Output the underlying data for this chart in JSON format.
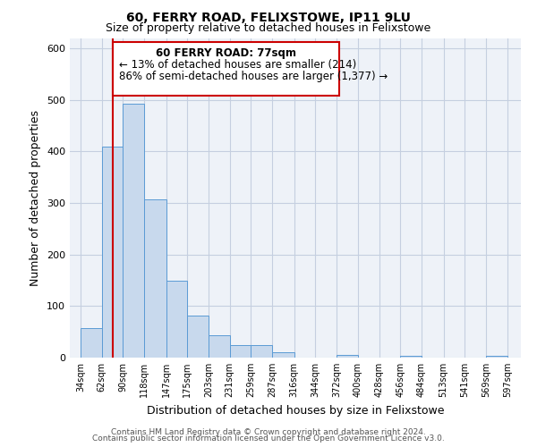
{
  "title": "60, FERRY ROAD, FELIXSTOWE, IP11 9LU",
  "subtitle": "Size of property relative to detached houses in Felixstowe",
  "xlabel": "Distribution of detached houses by size in Felixstowe",
  "ylabel": "Number of detached properties",
  "bar_left_edges": [
    34,
    62,
    90,
    118,
    147,
    175,
    203,
    231,
    259,
    287,
    316,
    344,
    372,
    400,
    428,
    456,
    484,
    513,
    541,
    569
  ],
  "bar_heights": [
    57,
    410,
    493,
    307,
    149,
    81,
    44,
    25,
    25,
    10,
    0,
    0,
    5,
    0,
    0,
    4,
    0,
    0,
    0,
    4
  ],
  "bar_widths": [
    28,
    28,
    28,
    29,
    28,
    28,
    28,
    28,
    28,
    29,
    28,
    28,
    28,
    28,
    28,
    28,
    29,
    28,
    28,
    28
  ],
  "bar_color": "#c8d9ed",
  "bar_edge_color": "#5b9bd5",
  "tick_labels": [
    "34sqm",
    "62sqm",
    "90sqm",
    "118sqm",
    "147sqm",
    "175sqm",
    "203sqm",
    "231sqm",
    "259sqm",
    "287sqm",
    "316sqm",
    "344sqm",
    "372sqm",
    "400sqm",
    "428sqm",
    "456sqm",
    "484sqm",
    "513sqm",
    "541sqm",
    "569sqm",
    "597sqm"
  ],
  "tick_positions": [
    34,
    62,
    90,
    118,
    147,
    175,
    203,
    231,
    259,
    287,
    316,
    344,
    372,
    400,
    428,
    456,
    484,
    513,
    541,
    569,
    597
  ],
  "ylim": [
    0,
    620
  ],
  "xlim": [
    20,
    615
  ],
  "property_line_x": 77,
  "property_line_color": "#cc0000",
  "ann_line1": "60 FERRY ROAD: 77sqm",
  "ann_line2": "← 13% of detached houses are smaller (214)",
  "ann_line3": "86% of semi-detached houses are larger (1,377) →",
  "footer_line1": "Contains HM Land Registry data © Crown copyright and database right 2024.",
  "footer_line2": "Contains public sector information licensed under the Open Government Licence v3.0.",
  "plot_bg_color": "#eef2f8",
  "fig_bg_color": "#ffffff",
  "grid_color": "#c5cfe0",
  "title_fontsize": 10,
  "subtitle_fontsize": 9,
  "axis_label_fontsize": 9,
  "tick_fontsize": 7,
  "annotation_fontsize": 8.5,
  "footer_fontsize": 6.5
}
